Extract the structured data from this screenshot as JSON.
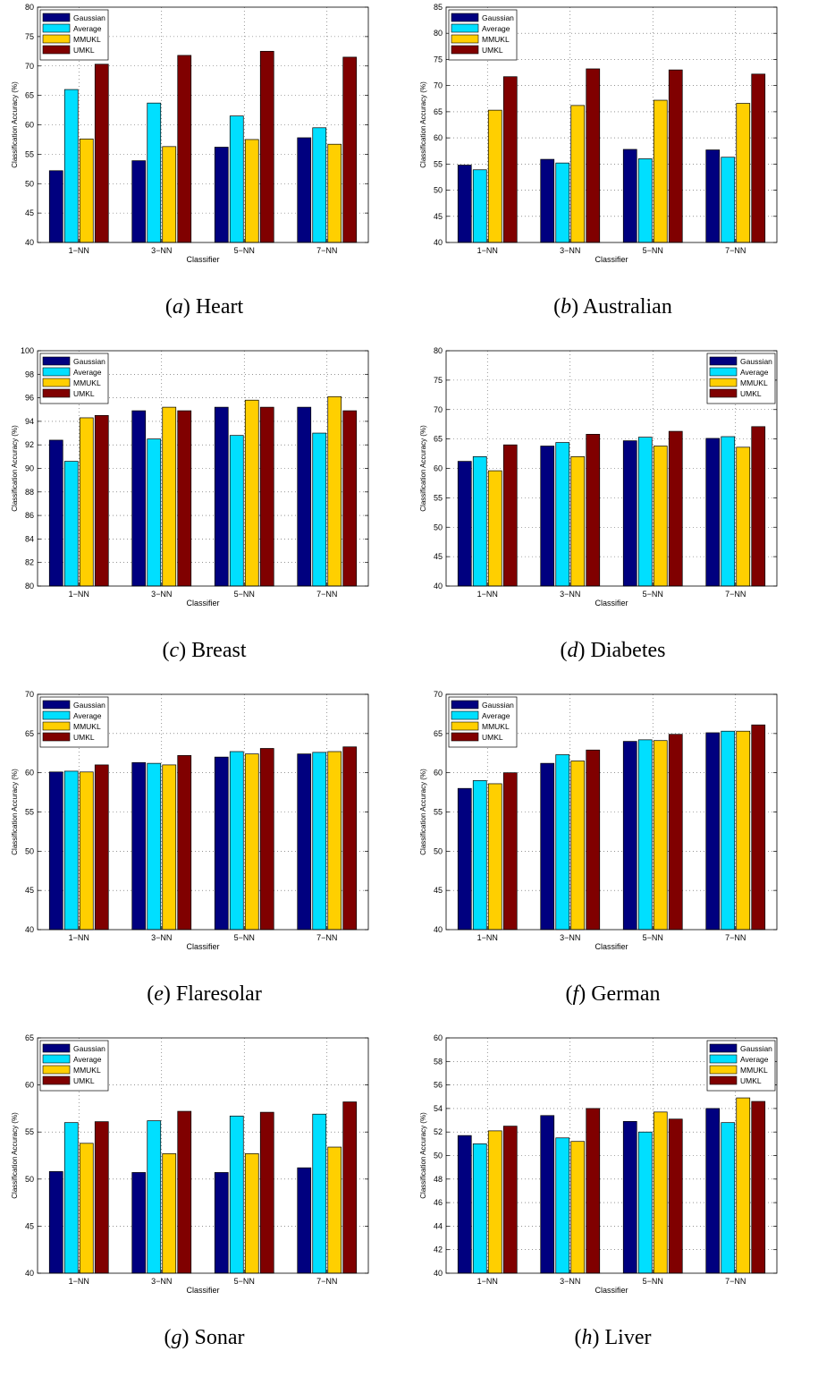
{
  "colors": {
    "Gaussian": "#00007f",
    "Average": "#00dfff",
    "MMUKL": "#ffcf00",
    "UMKL": "#800000"
  },
  "chart_data": [
    {
      "type": "bar",
      "caption_letter": "a",
      "caption_name": "Heart",
      "xlabel": "Classifier",
      "ylabel": "Classification Accuracy (%)",
      "ylim": [
        40,
        80
      ],
      "yticks": [
        40,
        45,
        50,
        55,
        60,
        65,
        70,
        75,
        80
      ],
      "grid": true,
      "legend_placement": "top-left",
      "categories": [
        "1−NN",
        "3−NN",
        "5−NN",
        "7−NN"
      ],
      "series": [
        {
          "name": "Gaussian",
          "values": [
            52.2,
            53.9,
            56.2,
            57.8
          ]
        },
        {
          "name": "Average",
          "values": [
            66.0,
            63.7,
            61.5,
            59.5
          ]
        },
        {
          "name": "MMUKL",
          "values": [
            57.6,
            56.3,
            57.5,
            56.7
          ]
        },
        {
          "name": "UMKL",
          "values": [
            70.3,
            71.8,
            72.5,
            71.5
          ]
        }
      ]
    },
    {
      "type": "bar",
      "caption_letter": "b",
      "caption_name": "Australian",
      "xlabel": "Classifier",
      "ylabel": "Classification Accuracy (%)",
      "ylim": [
        40,
        85
      ],
      "yticks": [
        40,
        45,
        50,
        55,
        60,
        65,
        70,
        75,
        80,
        85
      ],
      "grid": true,
      "legend_placement": "top-left",
      "categories": [
        "1−NN",
        "3−NN",
        "5−NN",
        "7−NN"
      ],
      "series": [
        {
          "name": "Gaussian",
          "values": [
            54.8,
            55.9,
            57.8,
            57.7
          ]
        },
        {
          "name": "Average",
          "values": [
            53.9,
            55.2,
            56.0,
            56.3
          ]
        },
        {
          "name": "MMUKL",
          "values": [
            65.3,
            66.2,
            67.2,
            66.6
          ]
        },
        {
          "name": "UMKL",
          "values": [
            71.7,
            73.2,
            73.0,
            72.2
          ]
        }
      ]
    },
    {
      "type": "bar",
      "caption_letter": "c",
      "caption_name": "Breast",
      "xlabel": "Classifier",
      "ylabel": "Classification Accuracy (%)",
      "ylim": [
        80,
        100
      ],
      "yticks": [
        80,
        82,
        84,
        86,
        88,
        90,
        92,
        94,
        96,
        98,
        100
      ],
      "grid": true,
      "legend_placement": "top-left",
      "categories": [
        "1−NN",
        "3−NN",
        "5−NN",
        "7−NN"
      ],
      "series": [
        {
          "name": "Gaussian",
          "values": [
            92.4,
            94.9,
            95.2,
            95.2
          ]
        },
        {
          "name": "Average",
          "values": [
            90.6,
            92.5,
            92.8,
            93.0
          ]
        },
        {
          "name": "MMUKL",
          "values": [
            94.3,
            95.2,
            95.8,
            96.1
          ]
        },
        {
          "name": "UMKL",
          "values": [
            94.5,
            94.9,
            95.2,
            94.9
          ]
        }
      ]
    },
    {
      "type": "bar",
      "caption_letter": "d",
      "caption_name": "Diabetes",
      "xlabel": "Classifier",
      "ylabel": "Classification Accuracy (%)",
      "ylim": [
        40,
        80
      ],
      "yticks": [
        40,
        45,
        50,
        55,
        60,
        65,
        70,
        75,
        80
      ],
      "grid": true,
      "legend_placement": "top-right",
      "categories": [
        "1−NN",
        "3−NN",
        "5−NN",
        "7−NN"
      ],
      "series": [
        {
          "name": "Gaussian",
          "values": [
            61.2,
            63.8,
            64.7,
            65.1
          ]
        },
        {
          "name": "Average",
          "values": [
            62.0,
            64.4,
            65.3,
            65.4
          ]
        },
        {
          "name": "MMUKL",
          "values": [
            59.6,
            62.0,
            63.8,
            63.6
          ]
        },
        {
          "name": "UMKL",
          "values": [
            64.0,
            65.8,
            66.3,
            67.1
          ]
        }
      ]
    },
    {
      "type": "bar",
      "caption_letter": "e",
      "caption_name": "Flaresolar",
      "xlabel": "Classifier",
      "ylabel": "Classification Accuracy (%)",
      "ylim": [
        40,
        70
      ],
      "yticks": [
        40,
        45,
        50,
        55,
        60,
        65,
        70
      ],
      "grid": true,
      "legend_placement": "top-left",
      "categories": [
        "1−NN",
        "3−NN",
        "5−NN",
        "7−NN"
      ],
      "series": [
        {
          "name": "Gaussian",
          "values": [
            60.1,
            61.3,
            62.0,
            62.4
          ]
        },
        {
          "name": "Average",
          "values": [
            60.2,
            61.2,
            62.7,
            62.6
          ]
        },
        {
          "name": "MMUKL",
          "values": [
            60.1,
            61.0,
            62.4,
            62.7
          ]
        },
        {
          "name": "UMKL",
          "values": [
            61.0,
            62.2,
            63.1,
            63.3
          ]
        }
      ]
    },
    {
      "type": "bar",
      "caption_letter": "f",
      "caption_name": "German",
      "xlabel": "Classifier",
      "ylabel": "Classification Accuracy (%)",
      "ylim": [
        40,
        70
      ],
      "yticks": [
        40,
        45,
        50,
        55,
        60,
        65,
        70
      ],
      "grid": true,
      "legend_placement": "top-left",
      "categories": [
        "1−NN",
        "3−NN",
        "5−NN",
        "7−NN"
      ],
      "series": [
        {
          "name": "Gaussian",
          "values": [
            58.0,
            61.2,
            64.0,
            65.1
          ]
        },
        {
          "name": "Average",
          "values": [
            59.0,
            62.3,
            64.2,
            65.3
          ]
        },
        {
          "name": "MMUKL",
          "values": [
            58.6,
            61.5,
            64.1,
            65.3
          ]
        },
        {
          "name": "UMKL",
          "values": [
            60.0,
            62.9,
            64.9,
            66.1
          ]
        }
      ]
    },
    {
      "type": "bar",
      "caption_letter": "g",
      "caption_name": "Sonar",
      "xlabel": "Classifier",
      "ylabel": "Classification Accuracy (%)",
      "ylim": [
        40,
        65
      ],
      "yticks": [
        40,
        45,
        50,
        55,
        60,
        65
      ],
      "grid": true,
      "legend_placement": "top-left",
      "categories": [
        "1−NN",
        "3−NN",
        "5−NN",
        "7−NN"
      ],
      "series": [
        {
          "name": "Gaussian",
          "values": [
            50.8,
            50.7,
            50.7,
            51.2
          ]
        },
        {
          "name": "Average",
          "values": [
            56.0,
            56.2,
            56.7,
            56.9
          ]
        },
        {
          "name": "MMUKL",
          "values": [
            53.8,
            52.7,
            52.7,
            53.4
          ]
        },
        {
          "name": "UMKL",
          "values": [
            56.1,
            57.2,
            57.1,
            58.2
          ]
        }
      ]
    },
    {
      "type": "bar",
      "caption_letter": "h",
      "caption_name": "Liver",
      "xlabel": "Classifier",
      "ylabel": "Classification Accuracy (%)",
      "ylim": [
        40,
        60
      ],
      "yticks": [
        40,
        42,
        44,
        46,
        48,
        50,
        52,
        54,
        56,
        58,
        60
      ],
      "grid": true,
      "legend_placement": "top-right",
      "categories": [
        "1−NN",
        "3−NN",
        "5−NN",
        "7−NN"
      ],
      "series": [
        {
          "name": "Gaussian",
          "values": [
            51.7,
            53.4,
            52.9,
            54.0
          ]
        },
        {
          "name": "Average",
          "values": [
            51.0,
            51.5,
            52.0,
            52.8
          ]
        },
        {
          "name": "MMUKL",
          "values": [
            52.1,
            51.2,
            53.7,
            54.9
          ]
        },
        {
          "name": "UMKL",
          "values": [
            52.5,
            54.0,
            53.1,
            54.6
          ]
        }
      ]
    }
  ]
}
